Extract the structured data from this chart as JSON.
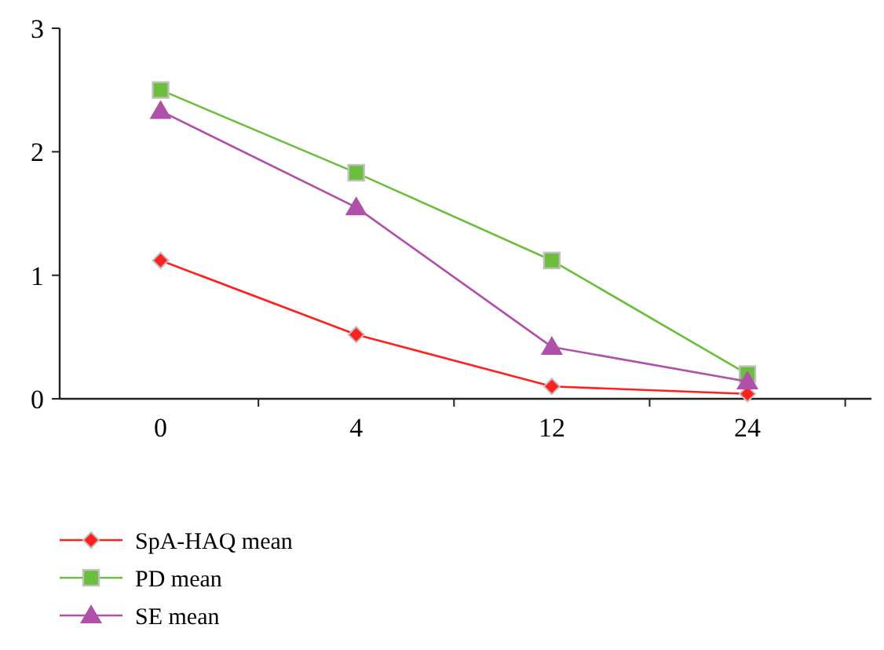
{
  "chart_data": {
    "type": "line",
    "categories": [
      "0",
      "4",
      "12",
      "24"
    ],
    "ylim": [
      0,
      3
    ],
    "yticks": [
      0,
      1,
      2,
      3
    ],
    "grid": false,
    "legend": "bottom left",
    "series": [
      {
        "name": "SpA-HAQ mean",
        "color": "#ff2020",
        "marker": "diamond",
        "values": [
          1.12,
          0.52,
          0.1,
          0.04
        ]
      },
      {
        "name": "PD mean",
        "color": "#6cbf3c",
        "marker": "square",
        "values": [
          2.5,
          1.83,
          1.12,
          0.2
        ]
      },
      {
        "name": "SE mean",
        "color": "#b050a8",
        "marker": "triangle",
        "values": [
          2.33,
          1.55,
          0.42,
          0.14
        ]
      }
    ]
  }
}
